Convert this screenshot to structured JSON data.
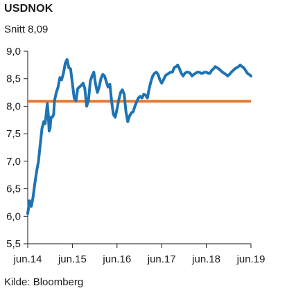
{
  "chart_data": {
    "type": "line",
    "title": "USDNOK",
    "subtitle": "Snitt 8,09",
    "source": "Kilde: Bloomberg",
    "ylim": [
      5.5,
      9.0
    ],
    "yticks": [
      "9,0",
      "8,5",
      "8,0",
      "7,5",
      "7,0",
      "6,5",
      "6,0",
      "5,5"
    ],
    "ytick_values": [
      9.0,
      8.5,
      8.0,
      7.5,
      7.0,
      6.5,
      6.0,
      5.5
    ],
    "xtick_labels": [
      "jun.14",
      "jun.15",
      "jun.16",
      "jun.17",
      "jun.18",
      "jun.19"
    ],
    "xlim": [
      2014.5,
      2019.5
    ],
    "grid": false,
    "series_color": "#1e73b4",
    "average_color": "#e8782e",
    "average": 8.09,
    "series": [
      {
        "x": [
          2014.5,
          2014.54,
          2014.58,
          2014.62,
          2014.66,
          2014.7,
          2014.74,
          2014.78,
          2014.82,
          2014.86,
          2014.89,
          2014.92,
          2014.94,
          2014.96,
          2014.98,
          2015.0,
          2015.02,
          2015.05,
          2015.08,
          2015.1,
          2015.14,
          2015.18,
          2015.22,
          2015.26,
          2015.3,
          2015.34,
          2015.38,
          2015.42,
          2015.46,
          2015.5,
          2015.54,
          2015.58,
          2015.62,
          2015.66,
          2015.7,
          2015.74,
          2015.78,
          2015.82,
          2015.86,
          2015.9,
          2015.94,
          2015.98,
          2016.02,
          2016.06,
          2016.1,
          2016.14,
          2016.18,
          2016.22,
          2016.26,
          2016.3,
          2016.34,
          2016.38,
          2016.42,
          2016.46,
          2016.5,
          2016.54,
          2016.58,
          2016.62,
          2016.66,
          2016.7,
          2016.74,
          2016.78,
          2016.82,
          2016.86,
          2016.9,
          2016.94,
          2016.98,
          2017.02,
          2017.06,
          2017.1,
          2017.14,
          2017.18,
          2017.22,
          2017.26,
          2017.3,
          2017.34,
          2017.38,
          2017.42,
          2017.46,
          2017.5,
          2017.54,
          2017.58,
          2017.62,
          2017.66,
          2017.7,
          2017.74,
          2017.78,
          2017.82,
          2017.86,
          2017.9,
          2017.94,
          2017.98,
          2018.02,
          2018.06,
          2018.1,
          2018.14,
          2018.18,
          2018.22,
          2018.26,
          2018.3,
          2018.34,
          2018.38,
          2018.42,
          2018.46,
          2018.5,
          2018.54,
          2018.58,
          2018.62,
          2018.66,
          2018.7,
          2018.74,
          2018.78,
          2018.82,
          2018.86,
          2018.9,
          2018.94,
          2018.98,
          2019.02,
          2019.06,
          2019.1,
          2019.14,
          2019.18,
          2019.22,
          2019.26,
          2019.3,
          2019.34,
          2019.38,
          2019.42,
          2019.46,
          2019.5
        ],
        "y": [
          6.05,
          6.28,
          6.18,
          6.35,
          6.6,
          6.82,
          7.0,
          7.3,
          7.6,
          7.72,
          7.68,
          7.9,
          8.05,
          7.85,
          7.55,
          7.6,
          7.8,
          7.8,
          7.85,
          8.1,
          8.25,
          8.35,
          8.52,
          8.48,
          8.6,
          8.78,
          8.85,
          8.7,
          8.68,
          8.42,
          8.15,
          8.1,
          8.32,
          8.35,
          8.38,
          8.42,
          8.32,
          8.0,
          8.1,
          8.45,
          8.55,
          8.62,
          8.4,
          8.25,
          8.35,
          8.5,
          8.58,
          8.55,
          8.45,
          8.35,
          8.4,
          8.08,
          7.85,
          7.8,
          7.95,
          8.12,
          8.25,
          8.3,
          8.22,
          7.9,
          7.72,
          7.82,
          7.88,
          7.9,
          8.0,
          8.08,
          8.15,
          8.18,
          8.15,
          8.22,
          8.2,
          8.15,
          8.32,
          8.45,
          8.55,
          8.6,
          8.62,
          8.58,
          8.48,
          8.42,
          8.48,
          8.55,
          8.58,
          8.6,
          8.62,
          8.62,
          8.7,
          8.72,
          8.75,
          8.68,
          8.6,
          8.55,
          8.6,
          8.62,
          8.62,
          8.6,
          8.55,
          8.58,
          8.6,
          8.62,
          8.62,
          8.6,
          8.6,
          8.62,
          8.62,
          8.6,
          8.6,
          8.65,
          8.68,
          8.72,
          8.7,
          8.68,
          8.65,
          8.62,
          8.6,
          8.58,
          8.55,
          8.58,
          8.62,
          8.65,
          8.68,
          8.7,
          8.72,
          8.75,
          8.72,
          8.7,
          8.65,
          8.6,
          8.58,
          8.55
        ]
      }
    ]
  }
}
